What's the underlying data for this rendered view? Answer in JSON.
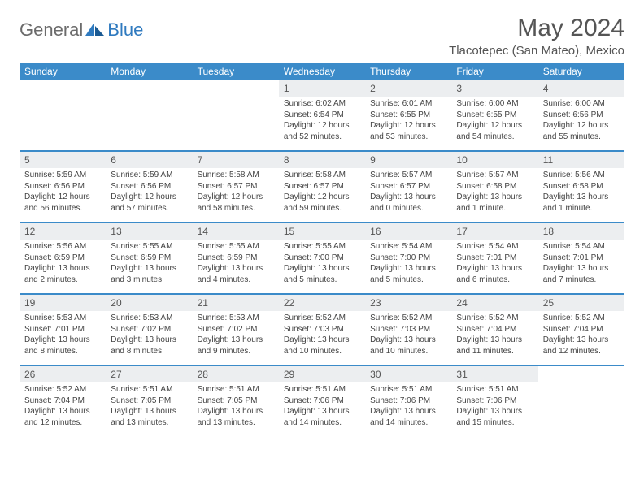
{
  "logo": {
    "part1": "General",
    "part2": "Blue"
  },
  "title": "May 2024",
  "location": "Tlacotepec (San Mateo), Mexico",
  "colors": {
    "header_bg": "#3b8bc9",
    "daynum_bg": "#eceef0",
    "logo_gray": "#6b6b6b",
    "logo_blue": "#2f7abf"
  },
  "weekdays": [
    "Sunday",
    "Monday",
    "Tuesday",
    "Wednesday",
    "Thursday",
    "Friday",
    "Saturday"
  ],
  "weeks": [
    [
      null,
      null,
      null,
      {
        "n": "1",
        "sr": "6:02 AM",
        "ss": "6:54 PM",
        "dl": "12 hours and 52 minutes."
      },
      {
        "n": "2",
        "sr": "6:01 AM",
        "ss": "6:55 PM",
        "dl": "12 hours and 53 minutes."
      },
      {
        "n": "3",
        "sr": "6:00 AM",
        "ss": "6:55 PM",
        "dl": "12 hours and 54 minutes."
      },
      {
        "n": "4",
        "sr": "6:00 AM",
        "ss": "6:56 PM",
        "dl": "12 hours and 55 minutes."
      }
    ],
    [
      {
        "n": "5",
        "sr": "5:59 AM",
        "ss": "6:56 PM",
        "dl": "12 hours and 56 minutes."
      },
      {
        "n": "6",
        "sr": "5:59 AM",
        "ss": "6:56 PM",
        "dl": "12 hours and 57 minutes."
      },
      {
        "n": "7",
        "sr": "5:58 AM",
        "ss": "6:57 PM",
        "dl": "12 hours and 58 minutes."
      },
      {
        "n": "8",
        "sr": "5:58 AM",
        "ss": "6:57 PM",
        "dl": "12 hours and 59 minutes."
      },
      {
        "n": "9",
        "sr": "5:57 AM",
        "ss": "6:57 PM",
        "dl": "13 hours and 0 minutes."
      },
      {
        "n": "10",
        "sr": "5:57 AM",
        "ss": "6:58 PM",
        "dl": "13 hours and 1 minute."
      },
      {
        "n": "11",
        "sr": "5:56 AM",
        "ss": "6:58 PM",
        "dl": "13 hours and 1 minute."
      }
    ],
    [
      {
        "n": "12",
        "sr": "5:56 AM",
        "ss": "6:59 PM",
        "dl": "13 hours and 2 minutes."
      },
      {
        "n": "13",
        "sr": "5:55 AM",
        "ss": "6:59 PM",
        "dl": "13 hours and 3 minutes."
      },
      {
        "n": "14",
        "sr": "5:55 AM",
        "ss": "6:59 PM",
        "dl": "13 hours and 4 minutes."
      },
      {
        "n": "15",
        "sr": "5:55 AM",
        "ss": "7:00 PM",
        "dl": "13 hours and 5 minutes."
      },
      {
        "n": "16",
        "sr": "5:54 AM",
        "ss": "7:00 PM",
        "dl": "13 hours and 5 minutes."
      },
      {
        "n": "17",
        "sr": "5:54 AM",
        "ss": "7:01 PM",
        "dl": "13 hours and 6 minutes."
      },
      {
        "n": "18",
        "sr": "5:54 AM",
        "ss": "7:01 PM",
        "dl": "13 hours and 7 minutes."
      }
    ],
    [
      {
        "n": "19",
        "sr": "5:53 AM",
        "ss": "7:01 PM",
        "dl": "13 hours and 8 minutes."
      },
      {
        "n": "20",
        "sr": "5:53 AM",
        "ss": "7:02 PM",
        "dl": "13 hours and 8 minutes."
      },
      {
        "n": "21",
        "sr": "5:53 AM",
        "ss": "7:02 PM",
        "dl": "13 hours and 9 minutes."
      },
      {
        "n": "22",
        "sr": "5:52 AM",
        "ss": "7:03 PM",
        "dl": "13 hours and 10 minutes."
      },
      {
        "n": "23",
        "sr": "5:52 AM",
        "ss": "7:03 PM",
        "dl": "13 hours and 10 minutes."
      },
      {
        "n": "24",
        "sr": "5:52 AM",
        "ss": "7:04 PM",
        "dl": "13 hours and 11 minutes."
      },
      {
        "n": "25",
        "sr": "5:52 AM",
        "ss": "7:04 PM",
        "dl": "13 hours and 12 minutes."
      }
    ],
    [
      {
        "n": "26",
        "sr": "5:52 AM",
        "ss": "7:04 PM",
        "dl": "13 hours and 12 minutes."
      },
      {
        "n": "27",
        "sr": "5:51 AM",
        "ss": "7:05 PM",
        "dl": "13 hours and 13 minutes."
      },
      {
        "n": "28",
        "sr": "5:51 AM",
        "ss": "7:05 PM",
        "dl": "13 hours and 13 minutes."
      },
      {
        "n": "29",
        "sr": "5:51 AM",
        "ss": "7:06 PM",
        "dl": "13 hours and 14 minutes."
      },
      {
        "n": "30",
        "sr": "5:51 AM",
        "ss": "7:06 PM",
        "dl": "13 hours and 14 minutes."
      },
      {
        "n": "31",
        "sr": "5:51 AM",
        "ss": "7:06 PM",
        "dl": "13 hours and 15 minutes."
      },
      null
    ]
  ],
  "labels": {
    "sunrise": "Sunrise:",
    "sunset": "Sunset:",
    "daylight": "Daylight:"
  }
}
